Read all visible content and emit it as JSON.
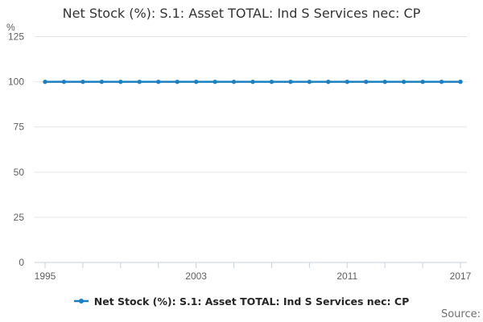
{
  "title": "Net Stock (%): S.1: Asset TOTAL: Ind S Services nec: CP",
  "source_label": "Source:",
  "legend": {
    "label": "Net Stock (%): S.1: Asset TOTAL: Ind S Services nec: CP",
    "marker": "line-dot-icon"
  },
  "colors": {
    "line": "#1b7fc3",
    "grid": "#e4e4e4",
    "axis": "#c7d2e0",
    "title_text": "#333333",
    "tick_text": "#5f5f5f",
    "legend_text": "#262626",
    "source_text": "#6f6f6f",
    "background": "#ffffff"
  },
  "chart_data": {
    "type": "line",
    "title": "Net Stock (%): S.1: Asset TOTAL: Ind S Services nec: CP",
    "xlabel": "",
    "ylabel": "%",
    "ylim": [
      0,
      125
    ],
    "yticks": [
      0,
      25,
      50,
      75,
      100,
      125
    ],
    "x": [
      1995,
      1996,
      1997,
      1998,
      1999,
      2000,
      2001,
      2002,
      2003,
      2004,
      2005,
      2006,
      2007,
      2008,
      2009,
      2010,
      2011,
      2012,
      2013,
      2014,
      2015,
      2016,
      2017
    ],
    "series": [
      {
        "name": "Net Stock (%): S.1: Asset TOTAL: Ind S Services nec: CP",
        "values": [
          100,
          100,
          100,
          100,
          100,
          100,
          100,
          100,
          100,
          100,
          100,
          100,
          100,
          100,
          100,
          100,
          100,
          100,
          100,
          100,
          100,
          100,
          100
        ]
      }
    ],
    "xtick_step": 2,
    "xtick_labels": [
      "1995",
      "2003",
      "2011",
      "2017"
    ],
    "grid": true,
    "legend_position": "bottom"
  }
}
